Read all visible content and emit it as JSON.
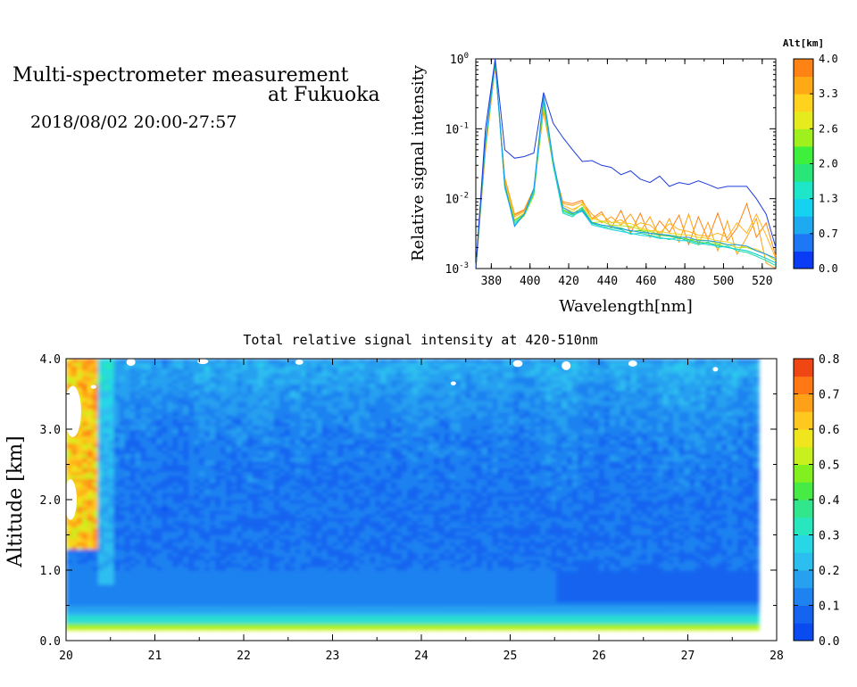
{
  "header": {
    "title_line1": "Multi-spectrometer measurement",
    "title_line2": "at Fukuoka",
    "time_range": "2018/08/02 20:00-27:57"
  },
  "chart_data": [
    {
      "type": "line",
      "xlabel": "Wavelength[nm]",
      "ylabel": "Relative signal intensity",
      "xlim": [
        372,
        527
      ],
      "ylim": [
        0.001,
        1
      ],
      "yscale": "log",
      "xticks": [
        "380",
        "400",
        "420",
        "440",
        "460",
        "480",
        "500",
        "520"
      ],
      "yticks": [
        "10^-3",
        "10^-2",
        "10^-1",
        "10^0"
      ],
      "colorbar": {
        "label": "Alt[km]",
        "ticks": [
          "0.0",
          "0.7",
          "1.3",
          "2.0",
          "2.6",
          "3.3",
          "4.0"
        ],
        "colors": [
          "#0a3cf5",
          "#1e78f5",
          "#1eaaf0",
          "#14d2f0",
          "#1ee6c8",
          "#28e678",
          "#3cf03c",
          "#a0f01e",
          "#e6eb1e",
          "#ffd21e",
          "#ffaa14",
          "#ff8214"
        ]
      },
      "x": [
        372,
        377,
        382,
        387,
        392,
        397,
        402,
        407,
        412,
        417,
        422,
        427,
        432,
        437,
        442,
        447,
        452,
        457,
        462,
        467,
        472,
        477,
        482,
        487,
        492,
        497,
        502,
        507,
        512,
        517,
        522,
        527
      ],
      "series": [
        {
          "color": "#1e3cdc",
          "values": [
            0.001,
            0.1,
            1.0,
            0.05,
            0.038,
            0.04,
            0.045,
            0.33,
            0.12,
            0.075,
            0.05,
            0.034,
            0.035,
            0.03,
            0.028,
            0.022,
            0.025,
            0.019,
            0.017,
            0.021,
            0.015,
            0.017,
            0.016,
            0.018,
            0.016,
            0.014,
            0.015,
            0.015,
            0.015,
            0.01,
            0.006,
            0.002
          ]
        },
        {
          "color": "#1e96f0",
          "values": [
            0.001,
            0.07,
            0.95,
            0.016,
            0.004,
            0.006,
            0.014,
            0.3,
            0.035,
            0.0075,
            0.0062,
            0.0068,
            0.0045,
            0.0042,
            0.004,
            0.0037,
            0.0035,
            0.0033,
            0.0032,
            0.0031,
            0.003,
            0.0028,
            0.0028,
            0.0025,
            0.0025,
            0.0024,
            0.0022,
            0.0022,
            0.0021,
            0.0018,
            0.0016,
            0.0014
          ]
        },
        {
          "color": "#14d2e6",
          "values": [
            0.001,
            0.065,
            0.9,
            0.015,
            0.0042,
            0.006,
            0.013,
            0.28,
            0.032,
            0.0065,
            0.0058,
            0.0066,
            0.0042,
            0.0039,
            0.0036,
            0.0034,
            0.0032,
            0.003,
            0.0029,
            0.0027,
            0.0027,
            0.0025,
            0.0025,
            0.0023,
            0.0022,
            0.0021,
            0.002,
            0.0019,
            0.0018,
            0.0016,
            0.0014,
            0.0012
          ]
        },
        {
          "color": "#1edca0",
          "values": [
            0.001,
            0.06,
            0.88,
            0.014,
            0.0045,
            0.0058,
            0.012,
            0.26,
            0.03,
            0.0062,
            0.0055,
            0.0072,
            0.0044,
            0.004,
            0.0038,
            0.0036,
            0.0031,
            0.0032,
            0.003,
            0.0028,
            0.0026,
            0.0028,
            0.0024,
            0.0022,
            0.0024,
            0.002,
            0.0021,
            0.0018,
            0.0017,
            0.0015,
            0.0013,
            0.0011
          ]
        },
        {
          "color": "#3cd23c",
          "values": [
            0.001,
            0.062,
            0.86,
            0.015,
            0.0048,
            0.006,
            0.012,
            0.25,
            0.03,
            0.007,
            0.006,
            0.0075,
            0.0046,
            0.0042,
            0.004,
            0.0038,
            0.0034,
            0.0035,
            0.0032,
            0.003,
            0.0029,
            0.0027,
            0.0026,
            0.0024,
            0.0023,
            0.0022,
            0.002,
            0.0019,
            0.0018,
            0.0016,
            0.0014,
            0.0012
          ]
        },
        {
          "color": "#b4e61e",
          "values": [
            0.001,
            0.058,
            0.85,
            0.016,
            0.0042,
            0.0057,
            0.011,
            0.23,
            0.029,
            0.0068,
            0.0058,
            0.007,
            0.0045,
            0.0047,
            0.0042,
            0.0041,
            0.004,
            0.0036,
            0.0034,
            0.0031,
            0.003,
            0.0029,
            0.0026,
            0.0026,
            0.0025,
            0.0023,
            0.0022,
            0.002,
            0.002,
            0.0018,
            0.0016,
            0.0013
          ]
        },
        {
          "color": "#f0d21e",
          "values": [
            0.001,
            0.06,
            0.84,
            0.017,
            0.005,
            0.0062,
            0.012,
            0.22,
            0.03,
            0.0075,
            0.0065,
            0.0085,
            0.0052,
            0.0048,
            0.0046,
            0.0045,
            0.0044,
            0.0038,
            0.0035,
            0.0034,
            0.0032,
            0.0031,
            0.003,
            0.0028,
            0.0027,
            0.0025,
            0.0024,
            0.0022,
            0.002,
            0.0019,
            0.0016,
            0.0013
          ]
        },
        {
          "color": "#ffb41e",
          "values": [
            0.001,
            0.055,
            0.82,
            0.018,
            0.0055,
            0.0065,
            0.013,
            0.21,
            0.031,
            0.008,
            0.007,
            0.0082,
            0.005,
            0.006,
            0.0045,
            0.005,
            0.0038,
            0.0045,
            0.0042,
            0.0032,
            0.0044,
            0.0036,
            0.0034,
            0.003,
            0.0029,
            0.0032,
            0.0028,
            0.0045,
            0.0032,
            0.006,
            0.003,
            0.0014
          ]
        },
        {
          "color": "#ffa014",
          "values": [
            0.001,
            0.05,
            0.8,
            0.02,
            0.006,
            0.007,
            0.014,
            0.19,
            0.032,
            0.0085,
            0.008,
            0.009,
            0.006,
            0.0045,
            0.0055,
            0.0042,
            0.006,
            0.0034,
            0.0055,
            0.0028,
            0.0052,
            0.0024,
            0.006,
            0.0022,
            0.0046,
            0.0018,
            0.0048,
            0.0016,
            0.0028,
            0.0052,
            0.0012,
            0.001
          ]
        },
        {
          "color": "#ff8214",
          "values": [
            0.001,
            0.048,
            0.78,
            0.019,
            0.0058,
            0.0068,
            0.013,
            0.18,
            0.03,
            0.009,
            0.0085,
            0.0095,
            0.0052,
            0.0065,
            0.0038,
            0.0068,
            0.0032,
            0.0062,
            0.0028,
            0.0048,
            0.0033,
            0.0058,
            0.0022,
            0.0055,
            0.0026,
            0.0062,
            0.0025,
            0.0038,
            0.0085,
            0.0028,
            0.0045,
            0.0015
          ]
        }
      ]
    },
    {
      "type": "heatmap",
      "title": "Total relative signal intensity at 420-510nm",
      "ylabel": "Altitude [km]",
      "xlim": [
        20,
        28
      ],
      "ylim": [
        0,
        4
      ],
      "data_x_range": [
        20,
        27.8
      ],
      "data_y_range": [
        0.15,
        4.0
      ],
      "xticks": [
        "20",
        "21",
        "22",
        "23",
        "24",
        "25",
        "26",
        "27",
        "28"
      ],
      "yticks": [
        "0.0",
        "1.0",
        "2.0",
        "3.0",
        "4.0"
      ],
      "colorbar": {
        "ticks": [
          "0.0",
          "0.1",
          "0.2",
          "0.3",
          "0.4",
          "0.5",
          "0.6",
          "0.7",
          "0.8"
        ],
        "levels": [
          0.0,
          0.05,
          0.1,
          0.15,
          0.2,
          0.25,
          0.3,
          0.35,
          0.4,
          0.45,
          0.5,
          0.55,
          0.6,
          0.65,
          0.7,
          0.75,
          0.8
        ],
        "colors": [
          "#0a4bf0",
          "#1464f0",
          "#1e82f0",
          "#28a0f0",
          "#2dbef0",
          "#28d7e6",
          "#28e6be",
          "#32e68c",
          "#46eb46",
          "#82f01e",
          "#c8f01e",
          "#f0e61e",
          "#ffc81e",
          "#ffa019",
          "#ff7814",
          "#f04614"
        ]
      },
      "intensity_profile": [
        {
          "alt": 0.15,
          "value": 0.5
        },
        {
          "alt": 0.2,
          "value": 0.45
        },
        {
          "alt": 0.25,
          "value": 0.25
        },
        {
          "alt": 0.3,
          "value": 0.3
        },
        {
          "alt": 0.35,
          "value": 0.22
        },
        {
          "alt": 0.45,
          "value": 0.15
        },
        {
          "alt": 0.7,
          "value": 0.12
        },
        {
          "alt": 1.0,
          "value": 0.1
        },
        {
          "alt": 2.0,
          "value": 0.1
        },
        {
          "alt": 2.8,
          "value": 0.12
        },
        {
          "alt": 3.5,
          "value": 0.16
        },
        {
          "alt": 3.9,
          "value": 0.2
        },
        {
          "alt": 4.0,
          "value": 0.1
        }
      ]
    }
  ]
}
